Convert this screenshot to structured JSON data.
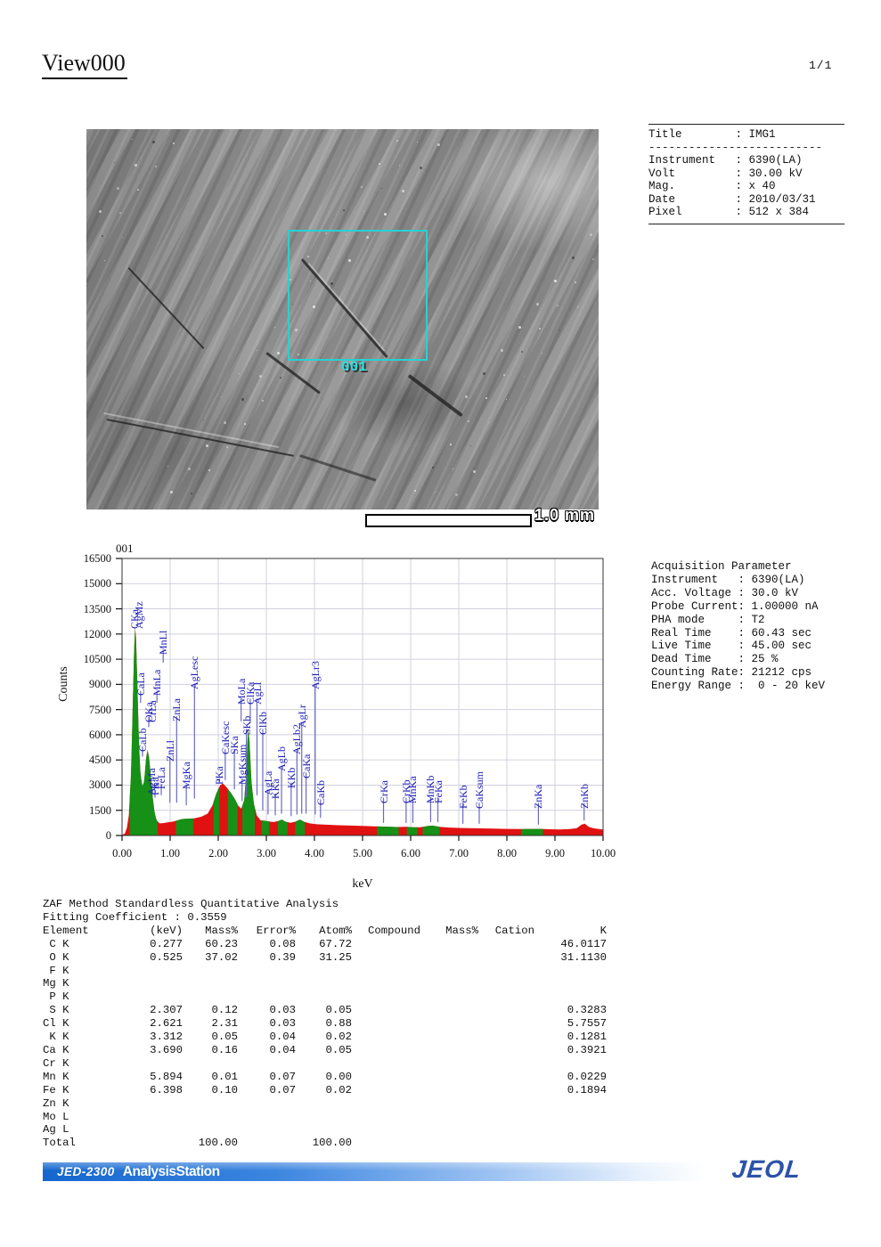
{
  "page": {
    "title": "View000",
    "page_number": "1/1"
  },
  "sem_panel": {
    "region_box_label": "001",
    "scale_bar_label": "1.0 mm",
    "region_box_color": "#27d2d2"
  },
  "info_panel": {
    "title_row": {
      "label": "Title",
      "value": "IMG1"
    },
    "separator": "--------------------------",
    "rows": [
      {
        "label": "Instrument",
        "value": "6390(LA)"
      },
      {
        "label": "Volt",
        "value": "30.00 kV"
      },
      {
        "label": "Mag.",
        "value": "x 40"
      },
      {
        "label": "Date",
        "value": "2010/03/31"
      },
      {
        "label": "Pixel",
        "value": "512 x 384"
      }
    ]
  },
  "acquisition_panel": {
    "title": "Acquisition Parameter",
    "rows": [
      {
        "label": "Instrument",
        "value": "6390(LA)"
      },
      {
        "label": "Acc. Voltage",
        "value": "30.0 kV"
      },
      {
        "label": "Probe Current",
        "value": "1.00000 nA"
      },
      {
        "label": "PHA mode",
        "value": "T2"
      },
      {
        "label": "Real Time",
        "value": "60.43 sec"
      },
      {
        "label": "Live Time",
        "value": "45.00 sec"
      },
      {
        "label": "Dead Time",
        "value": "25 %"
      },
      {
        "label": "Counting Rate",
        "value": "21212 cps"
      },
      {
        "label": "Energy Range",
        "value": " 0 - 20 keV"
      }
    ]
  },
  "chart_data": {
    "type": "area",
    "title": "001",
    "xlabel": "keV",
    "ylabel": "Counts",
    "xlim": [
      0,
      10
    ],
    "ylim": [
      0,
      16500
    ],
    "grid": true,
    "x_ticks": [
      "0.00",
      "1.00",
      "2.00",
      "3.00",
      "4.00",
      "5.00",
      "6.00",
      "7.00",
      "8.00",
      "9.00",
      "10.00"
    ],
    "y_ticks": [
      0,
      1500,
      3000,
      4500,
      6000,
      7500,
      9000,
      10500,
      12000,
      13500,
      15000,
      16500
    ],
    "colors": {
      "background_fill": "#e01111",
      "roi_fill": "#169016",
      "peak_label": "#1a1ab8",
      "marker_line": "#6a6ac0",
      "grid_line": "#d0d0e0"
    },
    "series": [
      {
        "name": "EDS spectrum (counts vs keV)",
        "points": [
          [
            0.0,
            30
          ],
          [
            0.06,
            120
          ],
          [
            0.1,
            450
          ],
          [
            0.14,
            1200
          ],
          [
            0.16,
            2200
          ],
          [
            0.19,
            3800
          ],
          [
            0.22,
            7500
          ],
          [
            0.25,
            11000
          ],
          [
            0.27,
            12400
          ],
          [
            0.29,
            11800
          ],
          [
            0.32,
            8800
          ],
          [
            0.35,
            5600
          ],
          [
            0.38,
            3800
          ],
          [
            0.42,
            2900
          ],
          [
            0.46,
            3200
          ],
          [
            0.5,
            4600
          ],
          [
            0.53,
            5100
          ],
          [
            0.56,
            4700
          ],
          [
            0.6,
            3500
          ],
          [
            0.64,
            2200
          ],
          [
            0.68,
            1300
          ],
          [
            0.72,
            900
          ],
          [
            0.78,
            720
          ],
          [
            0.85,
            740
          ],
          [
            0.95,
            780
          ],
          [
            1.05,
            820
          ],
          [
            1.15,
            900
          ],
          [
            1.25,
            980
          ],
          [
            1.35,
            1000
          ],
          [
            1.5,
            1020
          ],
          [
            1.65,
            1120
          ],
          [
            1.78,
            1300
          ],
          [
            1.88,
            1800
          ],
          [
            1.96,
            2500
          ],
          [
            2.04,
            3000
          ],
          [
            2.1,
            3100
          ],
          [
            2.18,
            2850
          ],
          [
            2.26,
            2550
          ],
          [
            2.34,
            2200
          ],
          [
            2.42,
            1750
          ],
          [
            2.48,
            1600
          ],
          [
            2.54,
            2100
          ],
          [
            2.58,
            3600
          ],
          [
            2.62,
            6400
          ],
          [
            2.65,
            5600
          ],
          [
            2.69,
            3200
          ],
          [
            2.74,
            1900
          ],
          [
            2.8,
            1200
          ],
          [
            2.88,
            900
          ],
          [
            2.96,
            880
          ],
          [
            3.05,
            840
          ],
          [
            3.15,
            800
          ],
          [
            3.25,
            860
          ],
          [
            3.32,
            950
          ],
          [
            3.4,
            820
          ],
          [
            3.5,
            760
          ],
          [
            3.6,
            820
          ],
          [
            3.7,
            950
          ],
          [
            3.78,
            820
          ],
          [
            3.9,
            720
          ],
          [
            4.05,
            670
          ],
          [
            4.25,
            640
          ],
          [
            4.5,
            610
          ],
          [
            4.75,
            590
          ],
          [
            5.0,
            570
          ],
          [
            5.25,
            545
          ],
          [
            5.5,
            525
          ],
          [
            5.7,
            505
          ],
          [
            5.9,
            520
          ],
          [
            6.05,
            490
          ],
          [
            6.2,
            490
          ],
          [
            6.35,
            560
          ],
          [
            6.45,
            590
          ],
          [
            6.6,
            520
          ],
          [
            6.8,
            470
          ],
          [
            7.0,
            450
          ],
          [
            7.2,
            435
          ],
          [
            7.45,
            425
          ],
          [
            7.7,
            410
          ],
          [
            8.0,
            395
          ],
          [
            8.3,
            385
          ],
          [
            8.55,
            390
          ],
          [
            8.7,
            395
          ],
          [
            8.9,
            370
          ],
          [
            9.1,
            360
          ],
          [
            9.3,
            380
          ],
          [
            9.45,
            430
          ],
          [
            9.55,
            640
          ],
          [
            9.62,
            700
          ],
          [
            9.7,
            520
          ],
          [
            9.8,
            430
          ],
          [
            9.9,
            390
          ],
          [
            10.0,
            360
          ]
        ]
      }
    ],
    "roi_green_ranges": [
      [
        0.16,
        0.74
      ],
      [
        1.12,
        1.48
      ],
      [
        1.9,
        2.02
      ],
      [
        2.2,
        2.4
      ],
      [
        2.5,
        2.76
      ],
      [
        2.9,
        3.06
      ],
      [
        3.24,
        3.44
      ],
      [
        3.6,
        3.8
      ],
      [
        5.3,
        5.75
      ],
      [
        5.92,
        6.14
      ],
      [
        6.25,
        6.6
      ],
      [
        8.3,
        8.75
      ]
    ],
    "peak_labels": [
      {
        "t": "CKa",
        "x": 0.2,
        "b": 12950
      },
      {
        "t": "AgMz",
        "x": 0.29,
        "b": 12950
      },
      {
        "t": "CaLa",
        "x": 0.33,
        "b": 8950,
        "l1": 8600,
        "l2": 7900
      },
      {
        "t": "CaLb",
        "x": 0.37,
        "b": 5650,
        "l1": 5300,
        "l2": 4700
      },
      {
        "t": "OKa",
        "x": 0.5,
        "b": 7400,
        "l1": 7050,
        "l2": 6450
      },
      {
        "t": "CrLa",
        "x": 0.57,
        "b": 7400
      },
      {
        "t": "AgMa",
        "x": 0.55,
        "b": 3000
      },
      {
        "t": "FKa",
        "x": 0.63,
        "b": 3000,
        "l1": 2700,
        "l2": 2250
      },
      {
        "t": "MnLa",
        "x": 0.67,
        "b": 8950,
        "l1": 8600,
        "l2": 7900
      },
      {
        "t": "FeLa",
        "x": 0.76,
        "b": 3400,
        "l1": 3050,
        "l2": 2400
      },
      {
        "t": "MnLl",
        "x": 0.8,
        "b": 11400,
        "l1": 11050,
        "l2": 10300
      },
      {
        "t": "ZnLl",
        "x": 0.94,
        "b": 5050,
        "l1": 4700,
        "l2": 1950
      },
      {
        "t": "ZnLa",
        "x": 1.08,
        "b": 7450,
        "l1": 7100,
        "l2": 1950
      },
      {
        "t": "MgKa",
        "x": 1.28,
        "b": 3400,
        "l1": 3050,
        "l2": 1800
      },
      {
        "t": "AgLesc",
        "x": 1.45,
        "b": 9350,
        "l1": 9000,
        "l2": 2200
      },
      {
        "t": "PKa",
        "x": 1.97,
        "b": 3650,
        "l1": 3400,
        "l2": 3200
      },
      {
        "t": "CaKesc",
        "x": 2.09,
        "b": 5450,
        "l1": 5150,
        "l2": 3300
      },
      {
        "t": "SKa",
        "x": 2.28,
        "b": 5450,
        "l1": 5150,
        "l2": 2750
      },
      {
        "t": "MgKsum",
        "x": 2.44,
        "b": 3650,
        "l1": 3350,
        "l2": 2050
      },
      {
        "t": "SKb",
        "x": 2.53,
        "b": 6650,
        "l1": 6350,
        "l2": 2300
      },
      {
        "t": "MoLa",
        "x": 2.42,
        "b": 8450,
        "l1": 8150,
        "l2": 6800
      },
      {
        "t": "ClKa",
        "x": 2.61,
        "b": 8450,
        "l1": 8150,
        "l2": 6700
      },
      {
        "t": "AgLl",
        "x": 2.75,
        "b": 8450,
        "l1": 8150,
        "l2": 2400
      },
      {
        "t": "ClKb",
        "x": 2.87,
        "b": 6650,
        "l1": 6350,
        "l2": 1500
      },
      {
        "t": "AgLa",
        "x": 2.98,
        "b": 3050,
        "l1": 2750,
        "l2": 1250
      },
      {
        "t": "KKa",
        "x": 3.13,
        "b": 2800,
        "l1": 2500,
        "l2": 1200
      },
      {
        "t": "AgLb",
        "x": 3.26,
        "b": 4450,
        "l1": 4150,
        "l2": 1300
      },
      {
        "t": "KKb",
        "x": 3.46,
        "b": 3450,
        "l1": 3150,
        "l2": 1150
      },
      {
        "t": "AgLb2",
        "x": 3.58,
        "b": 5450,
        "l1": 5150,
        "l2": 1250
      },
      {
        "t": "AgLr",
        "x": 3.68,
        "b": 7050,
        "l1": 6750,
        "l2": 1300
      },
      {
        "t": "CaKa",
        "x": 3.77,
        "b": 4050,
        "l1": 3750,
        "l2": 1300
      },
      {
        "t": "AgLr3",
        "x": 3.96,
        "b": 9350,
        "l1": 9050,
        "l2": 1250
      },
      {
        "t": "CaKb",
        "x": 4.07,
        "b": 2450,
        "l1": 2150,
        "l2": 1050
      },
      {
        "t": "CrKa",
        "x": 5.38,
        "b": 2550,
        "l1": 2250,
        "l2": 750
      },
      {
        "t": "CrKb",
        "x": 5.85,
        "b": 2550,
        "l1": 2250,
        "l2": 750
      },
      {
        "t": "MnKa",
        "x": 5.99,
        "b": 2550,
        "l1": 2250,
        "l2": 750
      },
      {
        "t": "MnKb",
        "x": 6.36,
        "b": 2550,
        "l1": 2250,
        "l2": 800
      },
      {
        "t": "FeKa",
        "x": 6.51,
        "b": 2550,
        "l1": 2250,
        "l2": 800
      },
      {
        "t": "FeKb",
        "x": 7.03,
        "b": 2250,
        "l1": 1950,
        "l2": 700
      },
      {
        "t": "CaKsum",
        "x": 7.37,
        "b": 2250,
        "l1": 1950,
        "l2": 700
      },
      {
        "t": "ZnKa",
        "x": 8.6,
        "b": 2250,
        "l1": 1950,
        "l2": 650
      },
      {
        "t": "ZnKb",
        "x": 9.55,
        "b": 2250,
        "l1": 1950,
        "l2": 900
      }
    ]
  },
  "quant_table": {
    "title": "ZAF Method Standardless Quantitative Analysis",
    "subtitle": "Fitting Coefficient : 0.3559",
    "headers": [
      "Element",
      "(keV)",
      "Mass%",
      "Error%",
      "Atom%",
      "Compound",
      "Mass%",
      "Cation",
      "K"
    ],
    "rows": [
      [
        " C K",
        "0.277",
        "60.23",
        "0.08",
        "67.72",
        "",
        "",
        "",
        "46.0117"
      ],
      [
        " O K",
        "0.525",
        "37.02",
        "0.39",
        "31.25",
        "",
        "",
        "",
        "31.1130"
      ],
      [
        " F K",
        "",
        "",
        "",
        "",
        "",
        "",
        "",
        ""
      ],
      [
        "Mg K",
        "",
        "",
        "",
        "",
        "",
        "",
        "",
        ""
      ],
      [
        " P K",
        "",
        "",
        "",
        "",
        "",
        "",
        "",
        ""
      ],
      [
        " S K",
        "2.307",
        "0.12",
        "0.03",
        "0.05",
        "",
        "",
        "",
        "0.3283"
      ],
      [
        "Cl K",
        "2.621",
        "2.31",
        "0.03",
        "0.88",
        "",
        "",
        "",
        "5.7557"
      ],
      [
        " K K",
        "3.312",
        "0.05",
        "0.04",
        "0.02",
        "",
        "",
        "",
        "0.1281"
      ],
      [
        "Ca K",
        "3.690",
        "0.16",
        "0.04",
        "0.05",
        "",
        "",
        "",
        "0.3921"
      ],
      [
        "Cr K",
        "",
        "",
        "",
        "",
        "",
        "",
        "",
        ""
      ],
      [
        "Mn K",
        "5.894",
        "0.01",
        "0.07",
        "0.00",
        "",
        "",
        "",
        "0.0229"
      ],
      [
        "Fe K",
        "6.398",
        "0.10",
        "0.07",
        "0.02",
        "",
        "",
        "",
        "0.1894"
      ],
      [
        "Zn K",
        "",
        "",
        "",
        "",
        "",
        "",
        "",
        ""
      ],
      [
        "Mo L",
        "",
        "",
        "",
        "",
        "",
        "",
        "",
        ""
      ],
      [
        "Ag L",
        "",
        "",
        "",
        "",
        "",
        "",
        "",
        ""
      ],
      [
        "Total",
        "",
        "100.00",
        "",
        "100.00",
        "",
        "",
        "",
        ""
      ]
    ]
  },
  "footer": {
    "model": "JED-2300",
    "app_name": "AnalysisStation",
    "logo": "JEOL"
  }
}
